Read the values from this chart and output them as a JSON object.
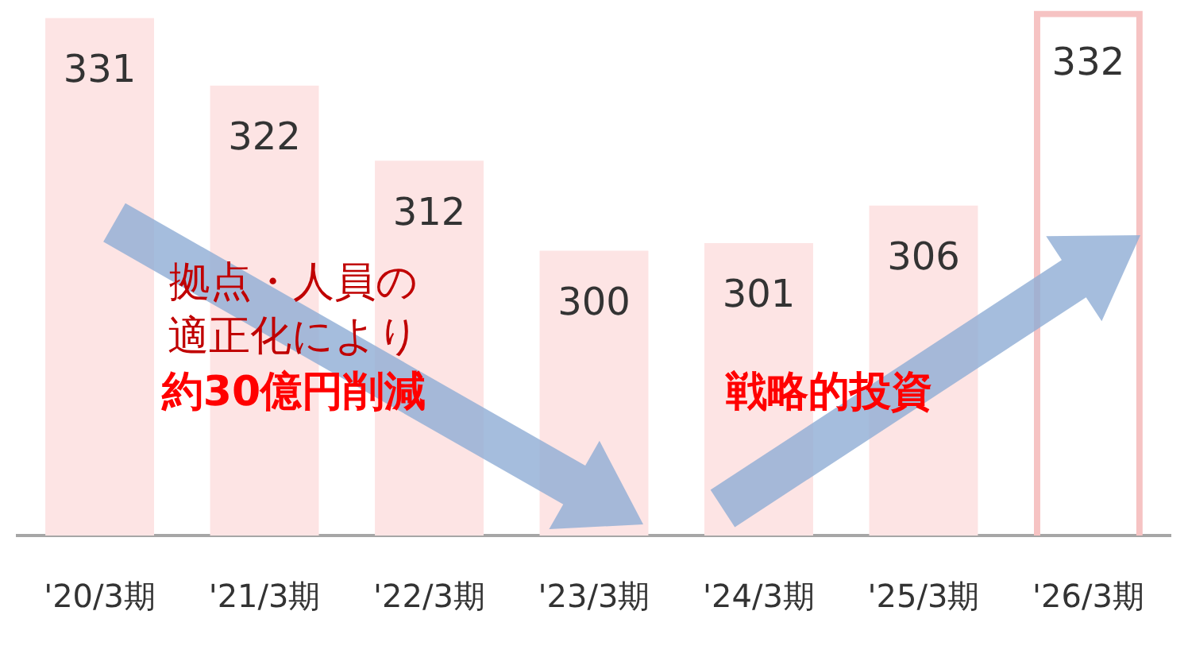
{
  "chart_data": {
    "type": "bar",
    "categories": [
      "'20/3期",
      "'21/3期",
      "'22/3期",
      "'23/3期",
      "'24/3期",
      "'25/3期",
      "'26/3期"
    ],
    "series": [
      {
        "color": "#fde4e4",
        "values": [
          331,
          322,
          312,
          300,
          301,
          306,
          null
        ]
      },
      {
        "color": "#f6c3c3",
        "line_style": "dashed",
        "values": [
          null,
          null,
          null,
          null,
          null,
          null,
          332
        ]
      }
    ],
    "ylim": [
      262,
      333
    ],
    "data_labels": true,
    "grid": false,
    "legend": false,
    "annotations": [
      "拠点・人員の",
      "適正化により",
      "約30億円削減",
      "戦略的投資"
    ]
  }
}
